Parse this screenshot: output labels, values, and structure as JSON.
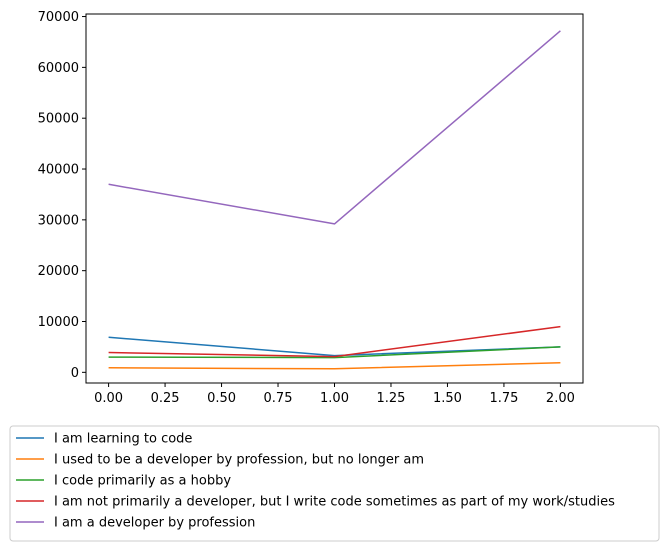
{
  "chart_data": {
    "type": "line",
    "x": [
      0,
      1,
      2
    ],
    "xlim": [
      -0.1,
      2.1
    ],
    "ylim": [
      -2100,
      70500
    ],
    "xticks": [
      0.0,
      0.25,
      0.5,
      0.75,
      1.0,
      1.25,
      1.5,
      1.75,
      2.0
    ],
    "xtick_labels": [
      "0.00",
      "0.25",
      "0.50",
      "0.75",
      "1.00",
      "1.25",
      "1.50",
      "1.75",
      "2.00"
    ],
    "yticks": [
      0,
      10000,
      20000,
      30000,
      40000,
      50000,
      60000,
      70000
    ],
    "ytick_labels": [
      "0",
      "10000",
      "20000",
      "30000",
      "40000",
      "50000",
      "60000",
      "70000"
    ],
    "grid": false,
    "legend_position": "below plot",
    "series": [
      {
        "name": "I am learning to code",
        "color": "#1f77b4",
        "values": [
          6900,
          3300,
          5000
        ]
      },
      {
        "name": "I used to be a developer by profession, but no longer am",
        "color": "#ff7f0e",
        "values": [
          900,
          700,
          1900
        ]
      },
      {
        "name": "I code primarily as a hobby",
        "color": "#2ca02c",
        "values": [
          3000,
          2900,
          5000
        ]
      },
      {
        "name": "I am not primarily a developer, but I write code sometimes as part of my work/studies",
        "color": "#d62728",
        "values": [
          3900,
          3100,
          9000
        ]
      },
      {
        "name": "I am a developer by profession",
        "color": "#9467bd",
        "values": [
          37000,
          29200,
          67200
        ]
      }
    ]
  }
}
